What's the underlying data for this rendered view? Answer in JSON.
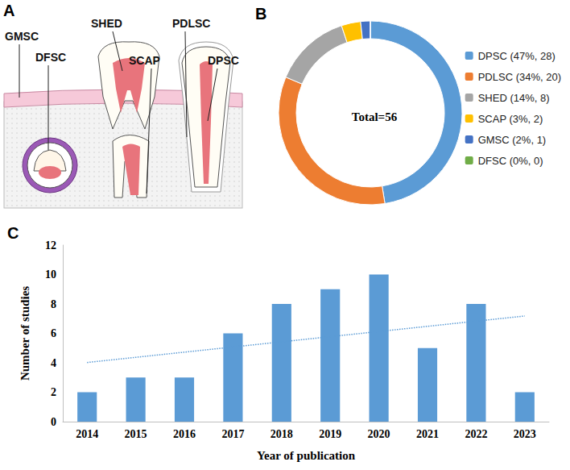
{
  "diagram": {
    "panel_label": "A",
    "labels": [
      "GMSC",
      "DFSC",
      "SHED",
      "SCAP",
      "PDLSC",
      "DPSC"
    ]
  },
  "chart_data": [
    {
      "type": "pie",
      "panel_label": "B",
      "center_text": "Total=56",
      "categories": [
        "DPSC (47%, 28)",
        "PDLSC (34%, 20)",
        "SHED (14%, 8)",
        "SCAP (3%, 2)",
        "GMSC (2%, 1)",
        "DFSC (0%, 0)"
      ],
      "values": [
        28,
        20,
        8,
        2,
        1,
        0
      ],
      "colors": [
        "#5b9bd5",
        "#ed7d31",
        "#a5a5a5",
        "#ffc000",
        "#4472c4",
        "#70ad47"
      ],
      "legend": "right"
    },
    {
      "type": "bar",
      "panel_label": "C",
      "x_label": "Year of publication",
      "y_label": "Number of studies",
      "categories": [
        "2014",
        "2015",
        "2016",
        "2017",
        "2018",
        "2019",
        "2020",
        "2021",
        "2022",
        "2023"
      ],
      "series": [
        {
          "type": "bar",
          "color": "#5b9bd5",
          "values": [
            2,
            3,
            3,
            6,
            8,
            9,
            10,
            5,
            8,
            2
          ]
        },
        {
          "type": "line",
          "color": "#5b9bd5",
          "line_style": "dotted",
          "values": [
            4.02,
            null,
            null,
            null,
            null,
            null,
            null,
            null,
            null,
            7.18
          ]
        }
      ],
      "ylim": [
        0,
        12
      ],
      "yticks": [
        0,
        2,
        4,
        6,
        8,
        10,
        12
      ],
      "grid": false
    }
  ]
}
